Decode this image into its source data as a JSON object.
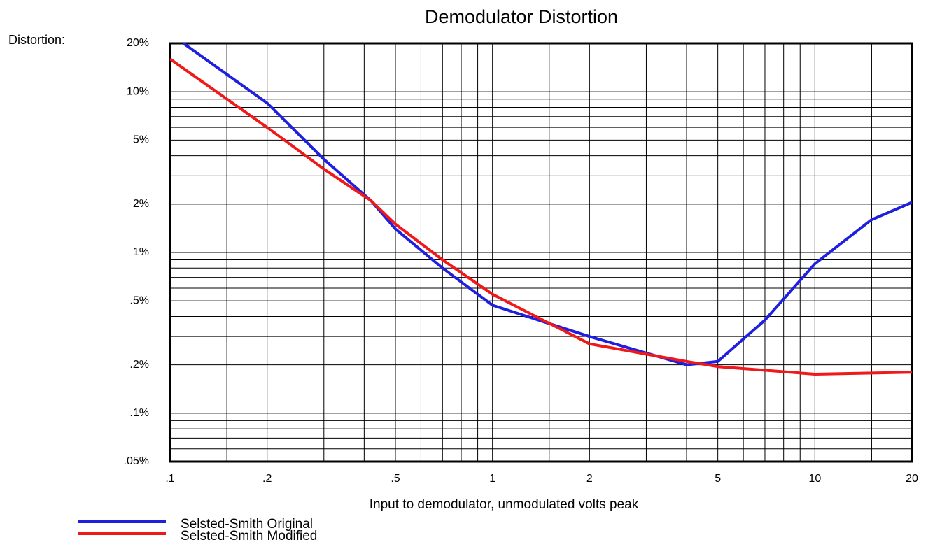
{
  "chart_data": {
    "type": "line",
    "title": "Demodulator Distortion",
    "y_label": "Distortion:",
    "x_label": "Input to demodulator, unmodulated volts peak",
    "x_log": true,
    "y_log": true,
    "grid": true,
    "xlim": [
      0.1,
      20
    ],
    "ylim": [
      0.05,
      20
    ],
    "xticks": [
      {
        "value": 0.1,
        "label": ".1"
      },
      {
        "value": 0.2,
        "label": ".2"
      },
      {
        "value": 0.5,
        "label": ".5"
      },
      1,
      2,
      5,
      10,
      20
    ],
    "yticks": [
      {
        "value": 20,
        "label": "20%"
      },
      {
        "value": 10,
        "label": "10%"
      },
      {
        "value": 5,
        "label": "5%"
      },
      {
        "value": 2,
        "label": "2%"
      },
      {
        "value": 1,
        "label": "1%"
      },
      {
        "value": 0.5,
        "label": ".5%"
      },
      {
        "value": 0.2,
        "label": ".2%"
      },
      {
        "value": 0.1,
        "label": ".1%"
      },
      {
        "value": 0.05,
        "label": ".05%"
      }
    ],
    "xgrid": [
      0.15,
      0.3,
      0.4,
      0.6,
      0.7,
      0.8,
      0.9,
      1.5,
      3,
      4,
      6,
      7,
      8,
      9,
      15
    ],
    "ygrid": [
      0.06,
      0.07,
      0.08,
      0.09,
      0.3,
      0.4,
      0.6,
      0.7,
      0.8,
      0.9,
      3,
      4,
      6,
      7,
      8,
      9
    ],
    "legend": "bottom-left",
    "series": [
      {
        "name": "Selsted-Smith Original",
        "color": "#1f1fe0",
        "x": [
          0.11,
          0.2,
          0.3,
          0.42,
          0.5,
          0.7,
          1,
          2,
          4,
          5,
          7,
          10,
          15,
          20
        ],
        "values": [
          20,
          8.5,
          3.8,
          2.1,
          1.4,
          0.8,
          0.47,
          0.3,
          0.2,
          0.21,
          0.38,
          0.85,
          1.6,
          2.05
        ]
      },
      {
        "name": "Selsted-Smith Modified",
        "color": "#f01818",
        "x": [
          0.1,
          0.2,
          0.3,
          0.42,
          0.5,
          0.7,
          1,
          2,
          4,
          5,
          10,
          20
        ],
        "values": [
          16,
          6,
          3.3,
          2.1,
          1.5,
          0.9,
          0.55,
          0.27,
          0.21,
          0.195,
          0.175,
          0.18
        ]
      }
    ]
  }
}
